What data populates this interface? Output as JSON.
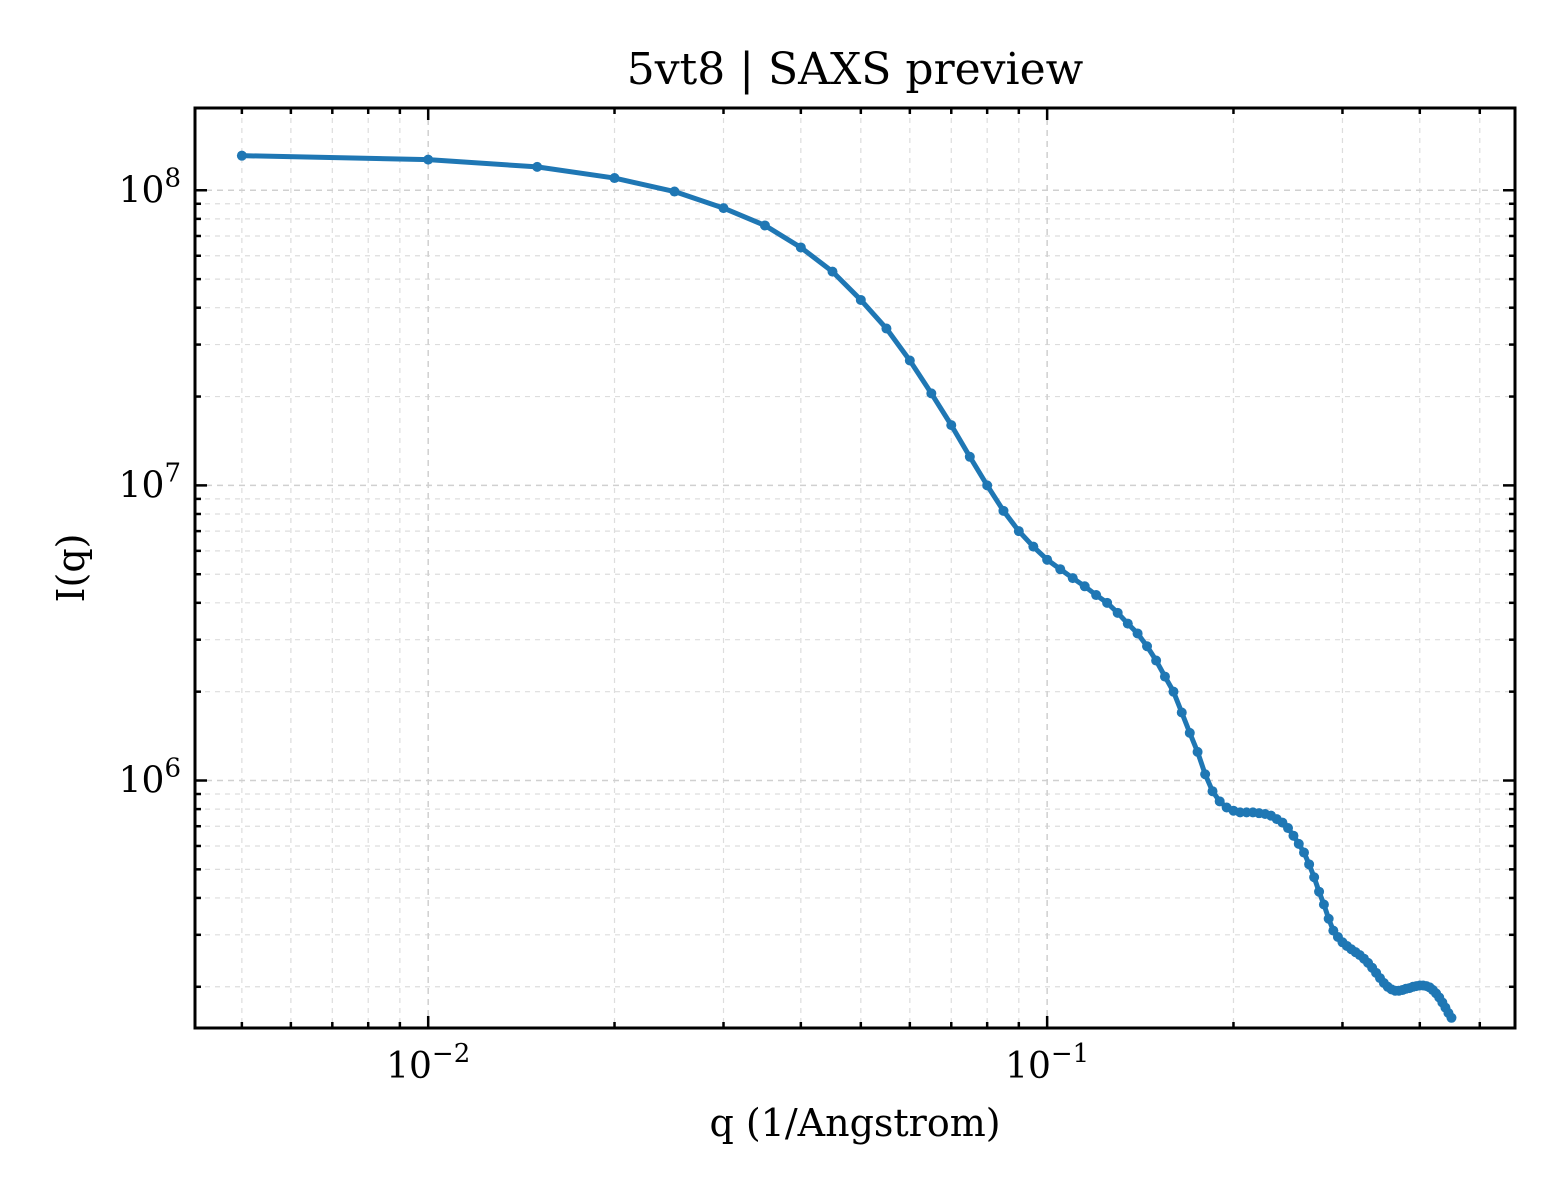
{
  "chart_data": {
    "type": "line",
    "title": "5vt8 | SAXS preview",
    "xlabel": "q (1/Angstrom)",
    "ylabel": "I(q)",
    "xscale": "log",
    "yscale": "log",
    "xlim": [
      0.0042,
      0.57
    ],
    "ylim": [
      145000,
      190000000
    ],
    "grid": true,
    "legend": "none",
    "x_ticks": [
      {
        "value": 0.01,
        "base": "10",
        "exp": "−2"
      },
      {
        "value": 0.1,
        "base": "10",
        "exp": "−1"
      }
    ],
    "y_ticks": [
      {
        "value": 1000000,
        "base": "10",
        "exp": "6"
      },
      {
        "value": 10000000,
        "base": "10",
        "exp": "7"
      },
      {
        "value": 100000000,
        "base": "10",
        "exp": "8"
      }
    ],
    "series": [
      {
        "color": "#1f77b4",
        "marker": "circle",
        "points": [
          [
            0.005,
            131000000
          ],
          [
            0.01,
            127000000
          ],
          [
            0.015,
            120000000
          ],
          [
            0.02,
            110000000
          ],
          [
            0.025,
            99000000
          ],
          [
            0.03,
            87000000
          ],
          [
            0.035,
            76000000
          ],
          [
            0.04,
            64000000
          ],
          [
            0.045,
            53000000
          ],
          [
            0.05,
            42500000
          ],
          [
            0.055,
            34000000
          ],
          [
            0.06,
            26500000
          ],
          [
            0.065,
            20500000
          ],
          [
            0.07,
            16000000
          ],
          [
            0.075,
            12500000
          ],
          [
            0.08,
            10000000
          ],
          [
            0.085,
            8200000
          ],
          [
            0.09,
            7000000
          ],
          [
            0.095,
            6200000
          ],
          [
            0.1,
            5600000
          ],
          [
            0.105,
            5200000
          ],
          [
            0.11,
            4850000
          ],
          [
            0.115,
            4550000
          ],
          [
            0.12,
            4250000
          ],
          [
            0.125,
            4000000
          ],
          [
            0.13,
            3700000
          ],
          [
            0.135,
            3400000
          ],
          [
            0.14,
            3150000
          ],
          [
            0.145,
            2850000
          ],
          [
            0.15,
            2550000
          ],
          [
            0.155,
            2250000
          ],
          [
            0.16,
            2000000
          ],
          [
            0.165,
            1700000
          ],
          [
            0.17,
            1450000
          ],
          [
            0.175,
            1250000
          ],
          [
            0.18,
            1050000
          ],
          [
            0.185,
            920000
          ],
          [
            0.19,
            850000
          ],
          [
            0.195,
            810000
          ],
          [
            0.2,
            790000
          ],
          [
            0.205,
            780000
          ],
          [
            0.21,
            780000
          ],
          [
            0.215,
            780000
          ],
          [
            0.22,
            775000
          ],
          [
            0.225,
            770000
          ],
          [
            0.23,
            760000
          ],
          [
            0.235,
            740000
          ],
          [
            0.24,
            720000
          ],
          [
            0.245,
            690000
          ],
          [
            0.25,
            650000
          ],
          [
            0.255,
            610000
          ],
          [
            0.26,
            570000
          ],
          [
            0.265,
            520000
          ],
          [
            0.27,
            470000
          ],
          [
            0.275,
            420000
          ],
          [
            0.28,
            380000
          ],
          [
            0.285,
            340000
          ],
          [
            0.29,
            310000
          ],
          [
            0.295,
            295000
          ],
          [
            0.3,
            283000
          ],
          [
            0.305,
            275000
          ],
          [
            0.31,
            268000
          ],
          [
            0.315,
            262000
          ],
          [
            0.32,
            256000
          ],
          [
            0.325,
            249000
          ],
          [
            0.33,
            241000
          ],
          [
            0.335,
            232000
          ],
          [
            0.34,
            223000
          ],
          [
            0.345,
            214000
          ],
          [
            0.35,
            206000
          ],
          [
            0.355,
            200000
          ],
          [
            0.36,
            196000
          ],
          [
            0.365,
            194000
          ],
          [
            0.37,
            194000
          ],
          [
            0.375,
            195000
          ],
          [
            0.38,
            197000
          ],
          [
            0.385,
            198000
          ],
          [
            0.39,
            200000
          ],
          [
            0.395,
            201000
          ],
          [
            0.4,
            202000
          ],
          [
            0.405,
            202000
          ],
          [
            0.41,
            201000
          ],
          [
            0.415,
            199000
          ],
          [
            0.42,
            195000
          ],
          [
            0.425,
            190000
          ],
          [
            0.43,
            184000
          ],
          [
            0.435,
            177000
          ],
          [
            0.44,
            170000
          ],
          [
            0.445,
            163000
          ],
          [
            0.45,
            157000
          ]
        ]
      }
    ]
  }
}
